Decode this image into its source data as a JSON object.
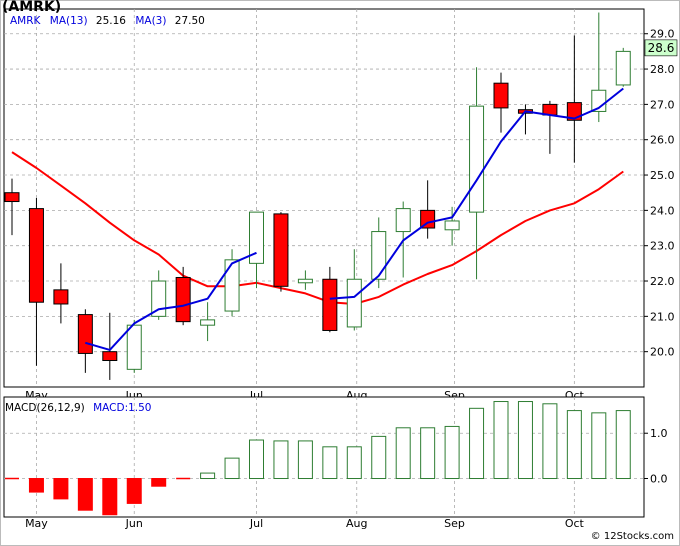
{
  "header": {
    "ticker": "(AMRK)",
    "price_legend": {
      "symbol": "AMRK",
      "ma13_label": "MA(13)",
      "ma13_value": "25.16",
      "ma3_label": "MA(3)",
      "ma3_value": "27.50"
    },
    "macd_legend": {
      "label": "MACD(26,12,9)",
      "value_label": "MACD:1.50"
    },
    "watermark": "© 12Stocks.com"
  },
  "colors": {
    "up_candle_border": "#2e7d32",
    "down_candle": "#ff0000",
    "ma13_line": "#ff0000",
    "ma3_line": "#0000dd",
    "macd_positive": "#2e7d32",
    "macd_negative": "#ff0000",
    "last_price_box": "#ccffcc",
    "grid": "#aaaaaa"
  },
  "chart_data": [
    {
      "type": "candlestick",
      "ylim": [
        19.0,
        29.7
      ],
      "y_ticks": [
        "20.0",
        "21.0",
        "22.0",
        "23.0",
        "24.0",
        "25.0",
        "26.0",
        "27.0",
        "28.0",
        "29.0"
      ],
      "y_tick_values": [
        20,
        21,
        22,
        23,
        24,
        25,
        26,
        27,
        28,
        29
      ],
      "x_month_labels": [
        {
          "label": "May",
          "index": 1
        },
        {
          "label": "Jun",
          "index": 5
        },
        {
          "label": "Jul",
          "index": 10
        },
        {
          "label": "Aug",
          "index": 14.1
        },
        {
          "label": "Sep",
          "index": 18.1
        },
        {
          "label": "Oct",
          "index": 23
        }
      ],
      "last_price_label": "28.6",
      "candles": [
        {
          "o": 24.5,
          "h": 24.9,
          "l": 23.3,
          "c": 24.25
        },
        {
          "o": 24.05,
          "h": 24.35,
          "l": 19.6,
          "c": 21.4
        },
        {
          "o": 21.75,
          "h": 22.5,
          "l": 20.8,
          "c": 21.35
        },
        {
          "o": 21.05,
          "h": 21.2,
          "l": 19.4,
          "c": 19.95
        },
        {
          "o": 20.0,
          "h": 21.1,
          "l": 19.2,
          "c": 19.75
        },
        {
          "o": 19.5,
          "h": 20.9,
          "l": 19.4,
          "c": 20.75
        },
        {
          "o": 21.0,
          "h": 22.3,
          "l": 20.9,
          "c": 22.0
        },
        {
          "o": 22.1,
          "h": 22.4,
          "l": 20.75,
          "c": 20.85
        },
        {
          "o": 20.75,
          "h": 21.4,
          "l": 20.3,
          "c": 20.9
        },
        {
          "o": 21.15,
          "h": 22.9,
          "l": 21.0,
          "c": 22.6
        },
        {
          "o": 22.5,
          "h": 23.95,
          "l": 21.8,
          "c": 23.95
        },
        {
          "o": 23.9,
          "h": 23.95,
          "l": 21.7,
          "c": 21.85
        },
        {
          "o": 21.95,
          "h": 22.3,
          "l": 21.75,
          "c": 22.05
        },
        {
          "o": 22.05,
          "h": 22.4,
          "l": 20.55,
          "c": 20.6
        },
        {
          "o": 20.7,
          "h": 22.9,
          "l": 20.6,
          "c": 22.05
        },
        {
          "o": 22.05,
          "h": 23.8,
          "l": 21.8,
          "c": 23.4
        },
        {
          "o": 23.4,
          "h": 24.25,
          "l": 22.1,
          "c": 24.05
        },
        {
          "o": 24.0,
          "h": 24.85,
          "l": 23.2,
          "c": 23.5
        },
        {
          "o": 23.45,
          "h": 24.1,
          "l": 23.0,
          "c": 23.7
        },
        {
          "o": 23.95,
          "h": 28.05,
          "l": 22.05,
          "c": 26.95
        },
        {
          "o": 27.6,
          "h": 27.9,
          "l": 26.2,
          "c": 26.9
        },
        {
          "o": 26.85,
          "h": 27.0,
          "l": 26.15,
          "c": 26.75
        },
        {
          "o": 27.0,
          "h": 27.1,
          "l": 25.6,
          "c": 26.7
        },
        {
          "o": 27.05,
          "h": 28.95,
          "l": 25.35,
          "c": 26.55
        },
        {
          "o": 26.8,
          "h": 29.6,
          "l": 26.5,
          "c": 27.4
        },
        {
          "o": 27.55,
          "h": 28.6,
          "l": 27.5,
          "c": 28.5
        }
      ],
      "series": [
        {
          "name": "MA(13)",
          "values": [
            25.65,
            25.2,
            24.7,
            24.2,
            23.65,
            23.15,
            22.75,
            22.15,
            21.85,
            21.85,
            21.95,
            21.8,
            21.65,
            21.4,
            21.35,
            21.55,
            21.9,
            22.2,
            22.45,
            22.85,
            23.3,
            23.7,
            24.0,
            24.2,
            24.6,
            25.1
          ]
        },
        {
          "name": "MA(3)",
          "values": [
            null,
            null,
            null,
            20.25,
            20.05,
            20.8,
            21.2,
            21.3,
            21.5,
            22.5,
            22.8,
            null,
            null,
            21.5,
            21.55,
            22.15,
            23.15,
            23.65,
            23.8,
            24.85,
            25.95,
            26.8,
            26.7,
            26.6,
            26.9,
            27.45
          ]
        }
      ]
    },
    {
      "type": "bar",
      "ylim": [
        -0.85,
        1.8
      ],
      "y_ticks": [
        "0.0",
        "1.0"
      ],
      "y_tick_values": [
        0.0,
        1.0
      ],
      "x_month_labels": [
        {
          "label": "May",
          "index": 1
        },
        {
          "label": "Jun",
          "index": 5
        },
        {
          "label": "Jul",
          "index": 10
        },
        {
          "label": "Aug",
          "index": 14.1
        },
        {
          "label": "Sep",
          "index": 18.1
        },
        {
          "label": "Oct",
          "index": 23
        }
      ],
      "series": [
        {
          "name": "MACD",
          "values": [
            0.0,
            -0.3,
            -0.45,
            -0.7,
            -0.8,
            -0.55,
            -0.17,
            -0.02,
            0.12,
            0.45,
            0.85,
            0.83,
            0.83,
            0.7,
            0.7,
            0.93,
            1.12,
            1.12,
            1.15,
            1.55,
            1.7,
            1.7,
            1.65,
            1.5,
            1.45,
            1.5
          ]
        }
      ]
    }
  ]
}
